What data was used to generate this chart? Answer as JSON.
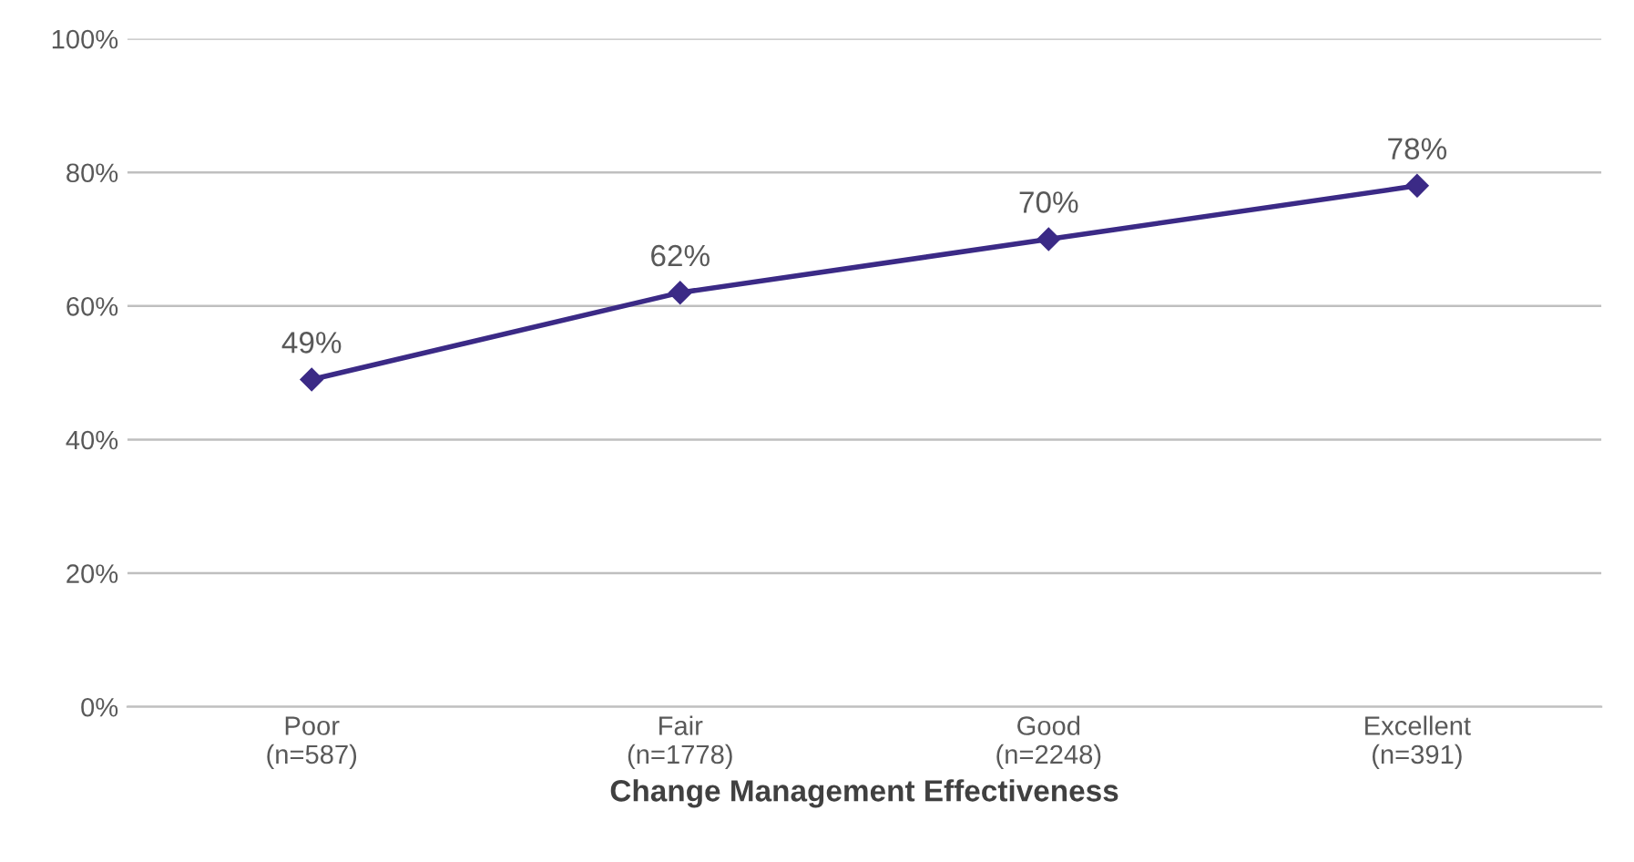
{
  "chart_data": {
    "type": "line",
    "xlabel": "Change Management Effectiveness",
    "categories": [
      "Poor\n(n=587)",
      "Fair\n(n=1778)",
      "Good\n(n=2248)",
      "Excellent\n(n=391)"
    ],
    "series": [
      {
        "color": "#3b2a86",
        "values": [
          49,
          62,
          70,
          78
        ],
        "value_labels": [
          "49%",
          "62%",
          "70%",
          "78%"
        ]
      }
    ],
    "ylim": [
      0,
      100
    ],
    "yticks": [
      {
        "value": 0,
        "label": "0%"
      },
      {
        "value": 20,
        "label": "20%"
      },
      {
        "value": 40,
        "label": "40%"
      },
      {
        "value": 60,
        "label": "60%"
      },
      {
        "value": 80,
        "label": "80%"
      },
      {
        "value": 100,
        "label": "100%"
      }
    ],
    "grid": "y",
    "marker": "diamond",
    "line_style": "solid",
    "legend": false
  }
}
